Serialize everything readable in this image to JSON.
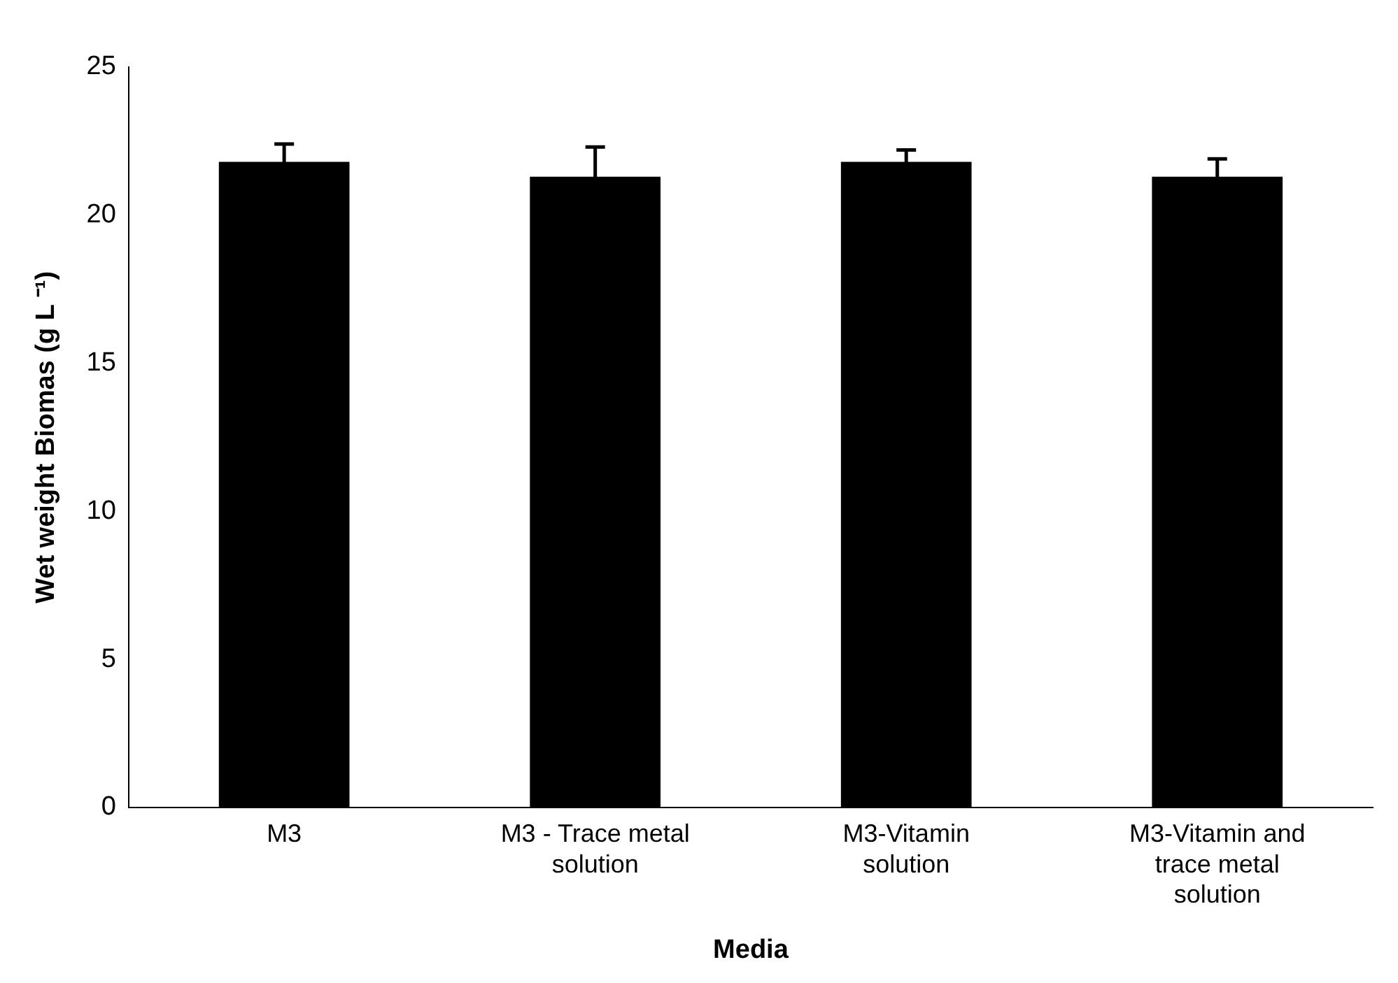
{
  "chart_data": {
    "type": "bar",
    "xlabel": "Media",
    "ylabel": "Wet weight Biomas (g L ⁻¹)",
    "categories": [
      "M3",
      "M3 - Trace metal solution",
      "M3-Vitamin solution",
      "M3-Vitamin and trace metal solution"
    ],
    "values": [
      21.8,
      21.3,
      21.8,
      21.3
    ],
    "errors": [
      0.6,
      1.0,
      0.4,
      0.6
    ],
    "color": "#000000",
    "ylim": [
      0,
      25
    ],
    "yticks": [
      0,
      5,
      10,
      15,
      20,
      25
    ],
    "grid": false,
    "legend": false
  }
}
